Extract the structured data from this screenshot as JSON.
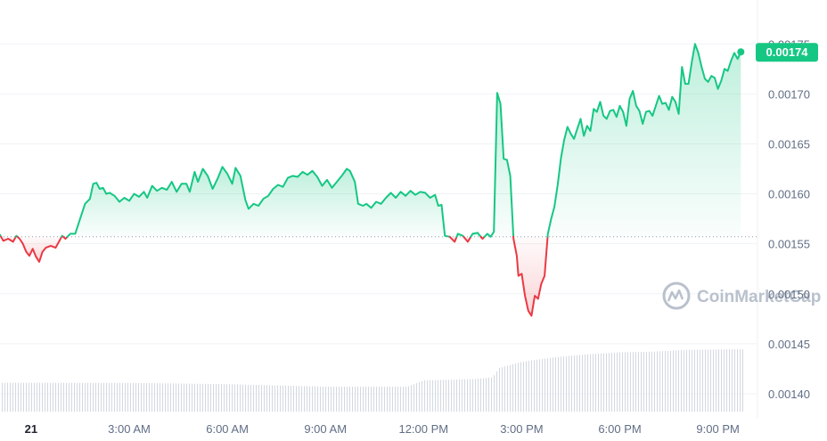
{
  "watermark": "CoinMarketCap",
  "colors": {
    "up": "#16c784",
    "down": "#ea3943",
    "grid": "#eff2f5",
    "baseline": "#8e9bb0",
    "volume": "#d3d8e0",
    "badge": "#16c784"
  },
  "current_price_label": "0.00174",
  "chart_data": {
    "type": "line",
    "baseline": 0.001557,
    "ylim": [
      0.001375,
      0.001785
    ],
    "y_ticks": [
      "0.00140",
      "0.00145",
      "0.00150",
      "0.00155",
      "0.00160",
      "0.00165",
      "0.00170",
      "0.00175"
    ],
    "y_tick_values": [
      0.0014,
      0.00145,
      0.0015,
      0.00155,
      0.0016,
      0.00165,
      0.0017,
      0.00175
    ],
    "x_range": [
      -0.95,
      21.8
    ],
    "x_ticks": [
      {
        "label": "21",
        "hour": 0,
        "bold": true
      },
      {
        "label": "3:00 AM",
        "hour": 3
      },
      {
        "label": "6:00 AM",
        "hour": 6
      },
      {
        "label": "9:00 AM",
        "hour": 9
      },
      {
        "label": "12:00 PM",
        "hour": 12
      },
      {
        "label": "3:00 PM",
        "hour": 15
      },
      {
        "label": "6:00 PM",
        "hour": 18
      },
      {
        "label": "9:00 PM",
        "hour": 21
      }
    ],
    "x_unit": "hours since 21 00:00",
    "price": [
      [
        -0.95,
        0.001559
      ],
      [
        -0.85,
        0.001553
      ],
      [
        -0.7,
        0.001555
      ],
      [
        -0.55,
        0.001552
      ],
      [
        -0.45,
        0.001558
      ],
      [
        -0.35,
        0.001555
      ],
      [
        -0.25,
        0.00155
      ],
      [
        -0.15,
        0.001542
      ],
      [
        -0.05,
        0.001538
      ],
      [
        0.05,
        0.001545
      ],
      [
        0.15,
        0.001537
      ],
      [
        0.25,
        0.001532
      ],
      [
        0.35,
        0.001542
      ],
      [
        0.45,
        0.001546
      ],
      [
        0.6,
        0.001548
      ],
      [
        0.75,
        0.001546
      ],
      [
        0.85,
        0.001552
      ],
      [
        0.95,
        0.001558
      ],
      [
        1.05,
        0.001555
      ],
      [
        1.2,
        0.00156
      ],
      [
        1.35,
        0.00156
      ],
      [
        1.5,
        0.001575
      ],
      [
        1.65,
        0.00159
      ],
      [
        1.8,
        0.001595
      ],
      [
        1.9,
        0.00161
      ],
      [
        2.0,
        0.001611
      ],
      [
        2.1,
        0.001605
      ],
      [
        2.2,
        0.001606
      ],
      [
        2.3,
        0.0016
      ],
      [
        2.4,
        0.001601
      ],
      [
        2.55,
        0.001598
      ],
      [
        2.7,
        0.001592
      ],
      [
        2.85,
        0.001596
      ],
      [
        3.0,
        0.001593
      ],
      [
        3.15,
        0.0016
      ],
      [
        3.3,
        0.001597
      ],
      [
        3.45,
        0.001602
      ],
      [
        3.55,
        0.001596
      ],
      [
        3.7,
        0.001608
      ],
      [
        3.85,
        0.001603
      ],
      [
        4.0,
        0.001606
      ],
      [
        4.15,
        0.001604
      ],
      [
        4.3,
        0.001612
      ],
      [
        4.45,
        0.001602
      ],
      [
        4.6,
        0.00161
      ],
      [
        4.75,
        0.00161
      ],
      [
        4.85,
        0.001602
      ],
      [
        5.0,
        0.001622
      ],
      [
        5.1,
        0.001612
      ],
      [
        5.25,
        0.001625
      ],
      [
        5.4,
        0.001618
      ],
      [
        5.55,
        0.001605
      ],
      [
        5.7,
        0.001615
      ],
      [
        5.85,
        0.001627
      ],
      [
        6.0,
        0.00162
      ],
      [
        6.15,
        0.00161
      ],
      [
        6.25,
        0.001626
      ],
      [
        6.4,
        0.001618
      ],
      [
        6.55,
        0.001594
      ],
      [
        6.65,
        0.001585
      ],
      [
        6.8,
        0.00159
      ],
      [
        6.95,
        0.001588
      ],
      [
        7.1,
        0.001595
      ],
      [
        7.25,
        0.001598
      ],
      [
        7.4,
        0.001605
      ],
      [
        7.55,
        0.001609
      ],
      [
        7.7,
        0.001607
      ],
      [
        7.85,
        0.001616
      ],
      [
        8.0,
        0.001618
      ],
      [
        8.15,
        0.001617
      ],
      [
        8.3,
        0.001622
      ],
      [
        8.45,
        0.001619
      ],
      [
        8.6,
        0.001623
      ],
      [
        8.75,
        0.001617
      ],
      [
        8.9,
        0.001608
      ],
      [
        9.05,
        0.001614
      ],
      [
        9.2,
        0.001606
      ],
      [
        9.35,
        0.001612
      ],
      [
        9.5,
        0.001618
      ],
      [
        9.65,
        0.001625
      ],
      [
        9.75,
        0.001623
      ],
      [
        9.9,
        0.001612
      ],
      [
        10.0,
        0.00159
      ],
      [
        10.15,
        0.001588
      ],
      [
        10.25,
        0.00159
      ],
      [
        10.4,
        0.001586
      ],
      [
        10.55,
        0.001592
      ],
      [
        10.7,
        0.00159
      ],
      [
        10.85,
        0.001596
      ],
      [
        11.0,
        0.001601
      ],
      [
        11.15,
        0.001596
      ],
      [
        11.3,
        0.001602
      ],
      [
        11.45,
        0.001598
      ],
      [
        11.6,
        0.001603
      ],
      [
        11.75,
        0.001599
      ],
      [
        11.9,
        0.001602
      ],
      [
        12.05,
        0.001601
      ],
      [
        12.2,
        0.001596
      ],
      [
        12.35,
        0.001599
      ],
      [
        12.45,
        0.001588
      ],
      [
        12.55,
        0.001589
      ],
      [
        12.65,
        0.001558
      ],
      [
        12.8,
        0.001557
      ],
      [
        12.95,
        0.001552
      ],
      [
        13.05,
        0.00156
      ],
      [
        13.2,
        0.001558
      ],
      [
        13.35,
        0.001552
      ],
      [
        13.5,
        0.00156
      ],
      [
        13.65,
        0.001561
      ],
      [
        13.8,
        0.001555
      ],
      [
        13.95,
        0.00156
      ],
      [
        14.05,
        0.001557
      ],
      [
        14.15,
        0.001562
      ],
      [
        14.25,
        0.001701
      ],
      [
        14.35,
        0.00169
      ],
      [
        14.45,
        0.001635
      ],
      [
        14.55,
        0.001634
      ],
      [
        14.65,
        0.001618
      ],
      [
        14.75,
        0.001555
      ],
      [
        14.85,
        0.001538
      ],
      [
        14.9,
        0.001518
      ],
      [
        15.0,
        0.00152
      ],
      [
        15.1,
        0.001498
      ],
      [
        15.2,
        0.001483
      ],
      [
        15.3,
        0.001478
      ],
      [
        15.4,
        0.001498
      ],
      [
        15.5,
        0.001495
      ],
      [
        15.6,
        0.00151
      ],
      [
        15.7,
        0.001518
      ],
      [
        15.8,
        0.00156
      ],
      [
        15.9,
        0.001575
      ],
      [
        16.0,
        0.001587
      ],
      [
        16.1,
        0.001609
      ],
      [
        16.2,
        0.001636
      ],
      [
        16.3,
        0.001654
      ],
      [
        16.4,
        0.001667
      ],
      [
        16.5,
        0.00166
      ],
      [
        16.6,
        0.001655
      ],
      [
        16.7,
        0.001665
      ],
      [
        16.8,
        0.001675
      ],
      [
        16.9,
        0.001658
      ],
      [
        17.0,
        0.001668
      ],
      [
        17.1,
        0.001663
      ],
      [
        17.2,
        0.001685
      ],
      [
        17.3,
        0.001682
      ],
      [
        17.4,
        0.001692
      ],
      [
        17.5,
        0.001678
      ],
      [
        17.6,
        0.001675
      ],
      [
        17.7,
        0.001683
      ],
      [
        17.8,
        0.001684
      ],
      [
        17.9,
        0.001677
      ],
      [
        18.0,
        0.001688
      ],
      [
        18.1,
        0.001682
      ],
      [
        18.2,
        0.001668
      ],
      [
        18.3,
        0.001695
      ],
      [
        18.4,
        0.001703
      ],
      [
        18.5,
        0.001688
      ],
      [
        18.6,
        0.001683
      ],
      [
        18.7,
        0.00167
      ],
      [
        18.8,
        0.001682
      ],
      [
        18.9,
        0.001683
      ],
      [
        19.0,
        0.001678
      ],
      [
        19.1,
        0.001688
      ],
      [
        19.2,
        0.001698
      ],
      [
        19.3,
        0.00169
      ],
      [
        19.4,
        0.001691
      ],
      [
        19.5,
        0.001684
      ],
      [
        19.6,
        0.001697
      ],
      [
        19.7,
        0.001692
      ],
      [
        19.8,
        0.00168
      ],
      [
        19.9,
        0.001727
      ],
      [
        20.0,
        0.00171
      ],
      [
        20.1,
        0.00171
      ],
      [
        20.2,
        0.001732
      ],
      [
        20.3,
        0.00175
      ],
      [
        20.4,
        0.001741
      ],
      [
        20.5,
        0.001727
      ],
      [
        20.6,
        0.001715
      ],
      [
        20.7,
        0.001712
      ],
      [
        20.8,
        0.001718
      ],
      [
        20.9,
        0.001716
      ],
      [
        21.0,
        0.001705
      ],
      [
        21.1,
        0.001713
      ],
      [
        21.2,
        0.001725
      ],
      [
        21.3,
        0.001723
      ],
      [
        21.4,
        0.001733
      ],
      [
        21.5,
        0.001741
      ],
      [
        21.6,
        0.001735
      ],
      [
        21.7,
        0.001742
      ]
    ],
    "volume_relative": [
      [
        -0.95,
        0.46
      ],
      [
        3.0,
        0.46
      ],
      [
        6.0,
        0.44
      ],
      [
        9.0,
        0.4
      ],
      [
        11.5,
        0.4
      ],
      [
        12.0,
        0.5
      ],
      [
        13.5,
        0.52
      ],
      [
        14.1,
        0.55
      ],
      [
        14.3,
        0.7
      ],
      [
        15.0,
        0.8
      ],
      [
        16.0,
        0.87
      ],
      [
        17.0,
        0.92
      ],
      [
        18.0,
        0.95
      ],
      [
        19.0,
        0.96
      ],
      [
        20.0,
        0.99
      ],
      [
        21.7,
        1.0
      ]
    ]
  }
}
